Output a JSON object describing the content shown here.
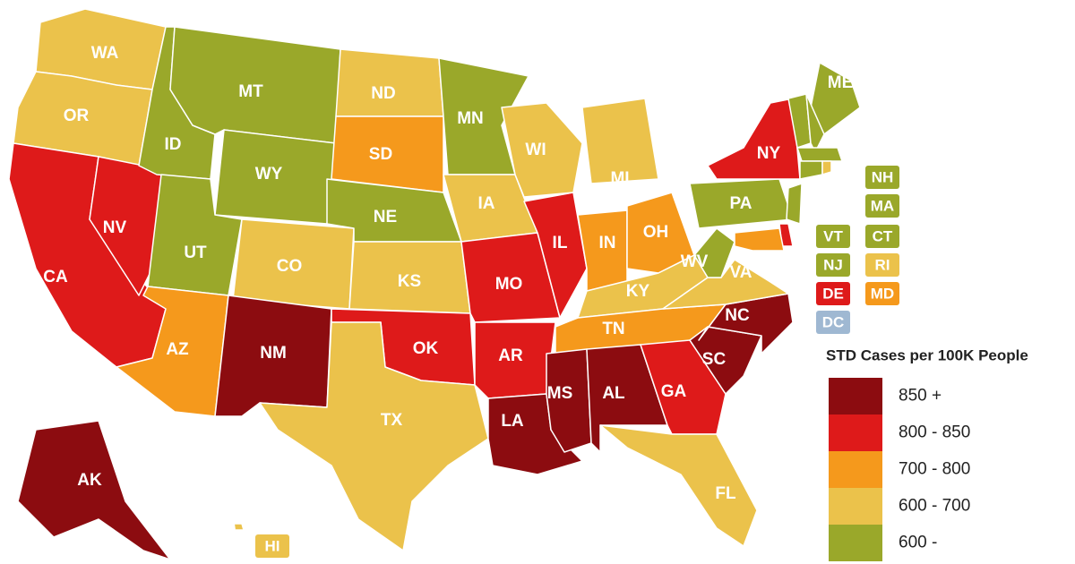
{
  "legend": {
    "title": "STD Cases per 100K People",
    "items": [
      {
        "label": "850 +",
        "color": "#8c0c10"
      },
      {
        "label": "800 - 850",
        "color": "#de1a1a"
      },
      {
        "label": "700 - 800",
        "color": "#f5991c"
      },
      {
        "label": "600 - 700",
        "color": "#ebc24b"
      },
      {
        "label": "600 -",
        "color": "#9aa82a"
      }
    ]
  },
  "states": [
    {
      "label": "WA",
      "color": "#ebc24b"
    },
    {
      "label": "OR",
      "color": "#ebc24b"
    },
    {
      "label": "CA",
      "color": "#de1a1a"
    },
    {
      "label": "NV",
      "color": "#de1a1a"
    },
    {
      "label": "ID",
      "color": "#9aa82a"
    },
    {
      "label": "MT",
      "color": "#9aa82a"
    },
    {
      "label": "WY",
      "color": "#9aa82a"
    },
    {
      "label": "UT",
      "color": "#9aa82a"
    },
    {
      "label": "CO",
      "color": "#ebc24b"
    },
    {
      "label": "AZ",
      "color": "#f5991c"
    },
    {
      "label": "NM",
      "color": "#8c0c10"
    },
    {
      "label": "ND",
      "color": "#ebc24b"
    },
    {
      "label": "SD",
      "color": "#f5991c"
    },
    {
      "label": "NE",
      "color": "#9aa82a"
    },
    {
      "label": "KS",
      "color": "#ebc24b"
    },
    {
      "label": "OK",
      "color": "#de1a1a"
    },
    {
      "label": "TX",
      "color": "#ebc24b"
    },
    {
      "label": "MN",
      "color": "#9aa82a"
    },
    {
      "label": "IA",
      "color": "#ebc24b"
    },
    {
      "label": "MO",
      "color": "#de1a1a"
    },
    {
      "label": "AR",
      "color": "#de1a1a"
    },
    {
      "label": "LA",
      "color": "#8c0c10"
    },
    {
      "label": "WI",
      "color": "#ebc24b"
    },
    {
      "label": "IL",
      "color": "#de1a1a"
    },
    {
      "label": "MI",
      "color": "#ebc24b"
    },
    {
      "label": "IN",
      "color": "#f5991c"
    },
    {
      "label": "OH",
      "color": "#f5991c"
    },
    {
      "label": "KY",
      "color": "#ebc24b"
    },
    {
      "label": "TN",
      "color": "#f5991c"
    },
    {
      "label": "MS",
      "color": "#8c0c10"
    },
    {
      "label": "AL",
      "color": "#8c0c10"
    },
    {
      "label": "GA",
      "color": "#de1a1a"
    },
    {
      "label": "FL",
      "color": "#ebc24b"
    },
    {
      "label": "SC",
      "color": "#8c0c10"
    },
    {
      "label": "NC",
      "color": "#8c0c10"
    },
    {
      "label": "VA",
      "color": "#ebc24b"
    },
    {
      "label": "WV",
      "color": "#9aa82a"
    },
    {
      "label": "PA",
      "color": "#9aa82a"
    },
    {
      "label": "NY",
      "color": "#de1a1a"
    },
    {
      "label": "ME",
      "color": "#9aa82a"
    },
    {
      "label": "VT",
      "color": "#9aa82a"
    },
    {
      "label": "NH",
      "color": "#9aa82a"
    },
    {
      "label": "MA",
      "color": "#9aa82a"
    },
    {
      "label": "CT",
      "color": "#9aa82a"
    },
    {
      "label": "RI",
      "color": "#ebc24b"
    },
    {
      "label": "NJ",
      "color": "#9aa82a"
    },
    {
      "label": "DE",
      "color": "#de1a1a"
    },
    {
      "label": "MD",
      "color": "#f5991c"
    },
    {
      "label": "AK",
      "color": "#8c0c10"
    },
    {
      "label": "HI",
      "color": "#ebc24b"
    },
    {
      "label": "DC",
      "color": "#9fb8d2"
    }
  ]
}
